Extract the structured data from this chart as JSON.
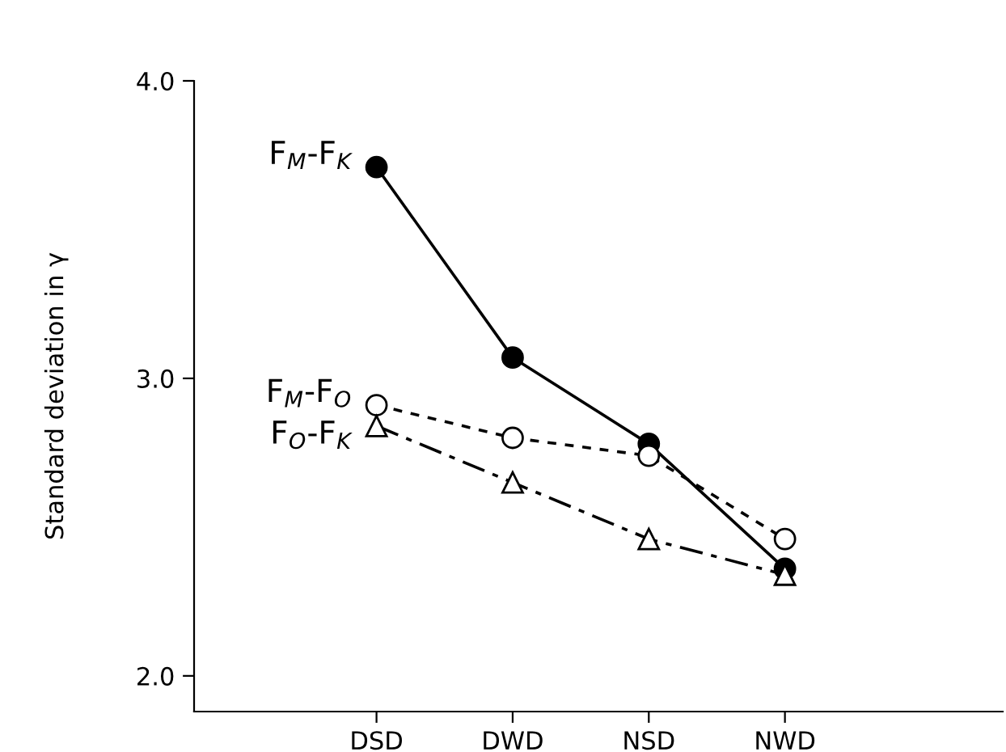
{
  "chart_data": {
    "type": "line",
    "ylabel": "Standard deviation in γ",
    "categories": [
      "DSD",
      "DWD",
      "NSD",
      "NWD"
    ],
    "series": [
      {
        "name": "F$_{M}$-F$_{K}$",
        "color": "#000000",
        "marker": "circle",
        "line_style": "solid",
        "values": [
          3.71,
          3.07,
          2.78,
          2.36
        ]
      },
      {
        "name": "F$_{M}$-F$_{O}$",
        "color": "#000000",
        "marker": "circle",
        "line_style": "dashed",
        "values": [
          2.91,
          2.8,
          2.74,
          2.46
        ]
      },
      {
        "name": "F$_{O}$-F$_{K}$",
        "color": "#000000",
        "marker": "triangle",
        "line_style": "dashdot",
        "values": [
          2.84,
          2.65,
          2.46,
          2.34
        ]
      }
    ],
    "ylim": [
      1.88,
      4.0
    ],
    "yticks": [
      {
        "value": 2,
        "label": "2.0"
      },
      {
        "value": 3,
        "label": "3.0"
      },
      {
        "value": 4,
        "label": "4.0"
      }
    ],
    "grid": false,
    "legend": false
  }
}
